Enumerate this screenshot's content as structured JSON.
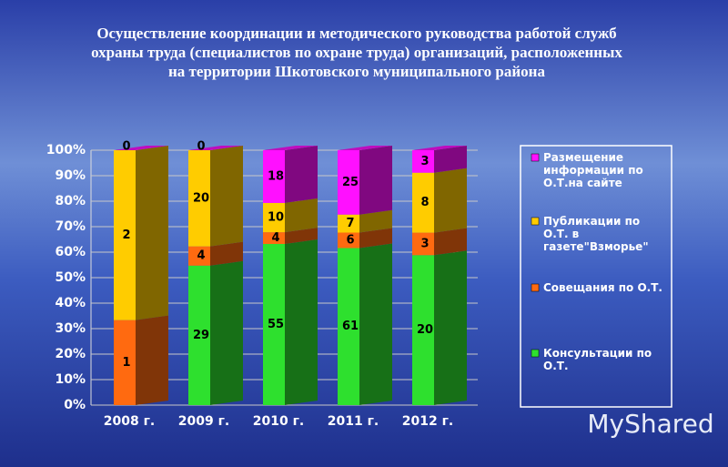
{
  "chart_data": {
    "type": "bar",
    "stacking": "percent",
    "title": [
      "Осуществление координации и методического руководства работой служб",
      "охраны  труда (специалистов по охране труда) организаций, расположенных",
      "на территории  Шкотовского муниципального района"
    ],
    "categories": [
      "2008 г.",
      "2009 г.",
      "2010 г.",
      "2011 г.",
      "2012 г."
    ],
    "series": [
      {
        "name": "Консультации по О.Т.",
        "color": "#2ee02e",
        "values": [
          0,
          29,
          55,
          61,
          20
        ]
      },
      {
        "name": "Совещания по О.Т.",
        "color": "#ff6a10",
        "values": [
          1,
          4,
          4,
          6,
          3
        ]
      },
      {
        "name": "Публикации по О.Т. в газете\"Взморье\"",
        "color": "#ffcc00",
        "values": [
          2,
          20,
          10,
          7,
          8
        ]
      },
      {
        "name": "Размещение информации по О.Т.на сайте",
        "color": "#ff10ff",
        "values": [
          0,
          0,
          18,
          25,
          3
        ]
      }
    ],
    "ylim": [
      0,
      100
    ],
    "yticks": [
      {
        "value": 0,
        "label": "0%"
      },
      {
        "value": 10,
        "label": "10%"
      },
      {
        "value": 20,
        "label": "20%"
      },
      {
        "value": 30,
        "label": "30%"
      },
      {
        "value": 40,
        "label": "40%"
      },
      {
        "value": 50,
        "label": "50%"
      },
      {
        "value": 60,
        "label": "60%"
      },
      {
        "value": 70,
        "label": "70%"
      },
      {
        "value": 80,
        "label": "80%"
      },
      {
        "value": 90,
        "label": "90%"
      },
      {
        "value": 100,
        "label": "100%"
      }
    ],
    "grid": true,
    "legend": "right",
    "watermark": "MyShared"
  }
}
